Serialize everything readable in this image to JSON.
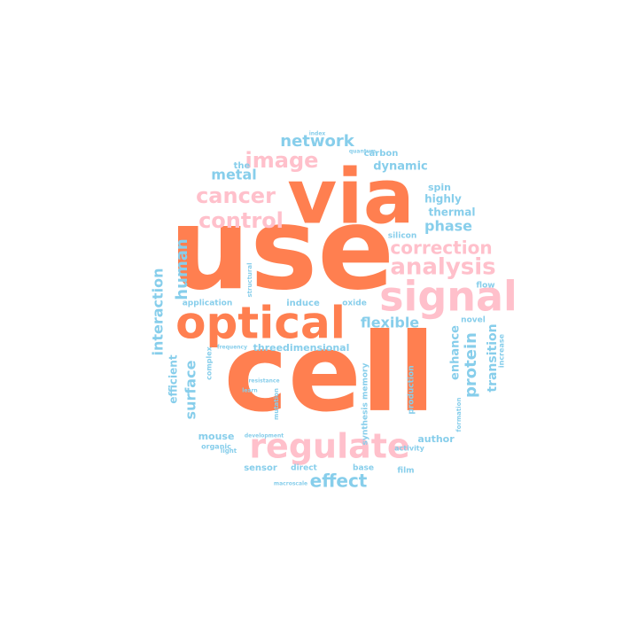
{
  "colors": {
    "orange": "#ff7f50",
    "pink": "#ffc0cb",
    "blue": "#87ceeb",
    "background": "#ffffff"
  },
  "word_cloud": {
    "words": [
      {
        "text": "use",
        "weight": 100,
        "color": "orange"
      },
      {
        "text": "cell",
        "weight": 95,
        "color": "orange"
      },
      {
        "text": "via",
        "weight": 70,
        "color": "orange"
      },
      {
        "text": "optical",
        "weight": 45,
        "color": "orange"
      },
      {
        "text": "signal",
        "weight": 40,
        "color": "pink"
      },
      {
        "text": "regulate",
        "weight": 38,
        "color": "pink"
      },
      {
        "text": "analysis",
        "weight": 24,
        "color": "pink"
      },
      {
        "text": "control",
        "weight": 22,
        "color": "pink"
      },
      {
        "text": "cancer",
        "weight": 22,
        "color": "pink"
      },
      {
        "text": "image",
        "weight": 22,
        "color": "pink"
      },
      {
        "text": "correction",
        "weight": 20,
        "color": "pink"
      },
      {
        "text": "effect",
        "weight": 18,
        "color": "blue"
      },
      {
        "text": "network",
        "weight": 18,
        "color": "blue"
      },
      {
        "text": "protein",
        "weight": 18,
        "color": "blue"
      },
      {
        "text": "human",
        "weight": 17,
        "color": "blue"
      },
      {
        "text": "flexible",
        "weight": 15,
        "color": "blue"
      },
      {
        "text": "surface",
        "weight": 15,
        "color": "blue"
      },
      {
        "text": "metal",
        "weight": 15,
        "color": "blue"
      },
      {
        "text": "interaction",
        "weight": 15,
        "color": "blue"
      },
      {
        "text": "phase",
        "weight": 14,
        "color": "blue"
      },
      {
        "text": "transition",
        "weight": 13,
        "color": "blue"
      },
      {
        "text": "enhance",
        "weight": 12,
        "color": "blue"
      },
      {
        "text": "dynamic",
        "weight": 12,
        "color": "blue"
      },
      {
        "text": "highly",
        "weight": 11,
        "color": "blue"
      },
      {
        "text": "thermal",
        "weight": 11,
        "color": "blue"
      },
      {
        "text": "efficient",
        "weight": 11,
        "color": "blue"
      },
      {
        "text": "threedimensional",
        "weight": 10,
        "color": "blue"
      },
      {
        "text": "spin",
        "weight": 10,
        "color": "blue"
      },
      {
        "text": "author",
        "weight": 10,
        "color": "blue"
      },
      {
        "text": "mouse",
        "weight": 10,
        "color": "blue"
      },
      {
        "text": "the",
        "weight": 9,
        "color": "blue"
      },
      {
        "text": "carbon",
        "weight": 9,
        "color": "blue"
      },
      {
        "text": "sensor",
        "weight": 9,
        "color": "blue"
      },
      {
        "text": "induce",
        "weight": 9,
        "color": "blue"
      },
      {
        "text": "silicon",
        "weight": 8,
        "color": "blue"
      },
      {
        "text": "flow",
        "weight": 8,
        "color": "blue"
      },
      {
        "text": "novel",
        "weight": 8,
        "color": "blue"
      },
      {
        "text": "oxide",
        "weight": 8,
        "color": "blue"
      },
      {
        "text": "application",
        "weight": 8,
        "color": "blue"
      },
      {
        "text": "synthesis memory",
        "weight": 8,
        "color": "blue"
      },
      {
        "text": "production",
        "weight": 8,
        "color": "blue"
      },
      {
        "text": "base",
        "weight": 8,
        "color": "blue"
      },
      {
        "text": "film",
        "weight": 8,
        "color": "blue"
      },
      {
        "text": "direct",
        "weight": 8,
        "color": "blue"
      },
      {
        "text": "complex",
        "weight": 7,
        "color": "blue"
      },
      {
        "text": "organic",
        "weight": 7,
        "color": "blue"
      },
      {
        "text": "increase",
        "weight": 7,
        "color": "blue"
      },
      {
        "text": "activity",
        "weight": 7,
        "color": "blue"
      },
      {
        "text": "light",
        "weight": 6,
        "color": "blue"
      },
      {
        "text": "structural",
        "weight": 6,
        "color": "blue"
      },
      {
        "text": "mutation",
        "weight": 6,
        "color": "blue"
      },
      {
        "text": "formation",
        "weight": 6,
        "color": "blue"
      },
      {
        "text": "resistance",
        "weight": 5,
        "color": "blue"
      },
      {
        "text": "learn",
        "weight": 5,
        "color": "blue"
      },
      {
        "text": "development",
        "weight": 5,
        "color": "blue"
      },
      {
        "text": "frequency",
        "weight": 5,
        "color": "blue"
      },
      {
        "text": "macroscale",
        "weight": 5,
        "color": "blue"
      },
      {
        "text": "quantum",
        "weight": 5,
        "color": "blue"
      },
      {
        "text": "index",
        "weight": 5,
        "color": "blue"
      }
    ]
  }
}
